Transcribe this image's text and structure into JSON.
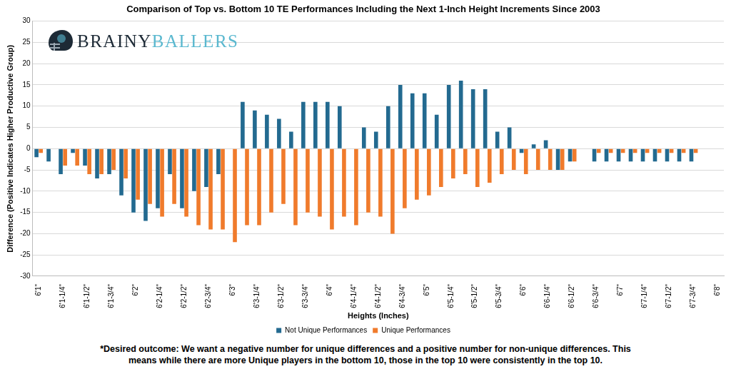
{
  "chart_data": {
    "type": "bar",
    "title": "Comparison of Top vs. Bottom 10 TE Performances Including the Next 1-Inch Height Increments Since 2003",
    "x_label": "Heights (Inches)",
    "y_label": "Difference (Positive Indicates Higher Productive Group)",
    "annotations": [
      "BRAINY",
      "BALLERS",
      "*Desired outcome: We want a negative number for unique differences and a positive number for non-unique differences. This",
      "means while there are more Unique players in the bottom 10, those in the top 10 were consistently in the top 10."
    ],
    "categories": [
      "6'1\"",
      null,
      "6'1-1/4\"",
      null,
      "6'1-1/2\"",
      null,
      "6'1-3/4\"",
      null,
      "6'2\"",
      null,
      "6'2-1/4\"",
      null,
      "6'2-1/2\"",
      null,
      "6'2-3/4\"",
      null,
      "6'3\"",
      null,
      "6'3-1/4\"",
      null,
      "6'3-1/2\"",
      null,
      "6'3-3/4\"",
      null,
      "6'4\"",
      null,
      "6'4-1/4\"",
      null,
      "6'4-1/2\"",
      null,
      "6'4-3/4\"",
      null,
      "6'5\"",
      null,
      "6'5-1/4\"",
      null,
      "6'5-1/2\"",
      null,
      "6'5-3/4\"",
      null,
      "6'6\"",
      null,
      "6'6-1/4\"",
      null,
      "6'6-1/2\"",
      null,
      "6'6-3/4\"",
      null,
      "6'7\"",
      null,
      "6'7-1/4\"",
      null,
      "6'7-1/2\"",
      null,
      "6'7-3/4\"",
      null,
      "6'8\""
    ],
    "series": [
      {
        "name": "Not Unique Performances",
        "color": "#236a90",
        "values": [
          -2,
          -3,
          -6,
          -1,
          -4,
          -7,
          -6,
          -11,
          -15,
          -17,
          -14,
          -6,
          -14,
          -10,
          -9,
          -6,
          0,
          11,
          9,
          8,
          7,
          4,
          11,
          11,
          11,
          10,
          0,
          5,
          4,
          10,
          15,
          13,
          13,
          8,
          15,
          16,
          14,
          14,
          4,
          5,
          -1,
          1,
          2,
          -5,
          -3,
          0,
          -3,
          -3,
          -3,
          -3,
          -3,
          -3,
          -3,
          -3,
          -3,
          0,
          0
        ]
      },
      {
        "name": "Unique Performances",
        "color": "#f07b2c",
        "values": [
          -1,
          0,
          -4,
          -4,
          -6,
          -6,
          -5,
          -7,
          -12,
          -13,
          -16,
          -13,
          -16,
          -18,
          -19,
          -19,
          -22,
          -18,
          -18,
          -15,
          -13,
          -18,
          -15,
          -16,
          -19,
          -16,
          -18,
          -15,
          -16,
          -20,
          -14,
          -12,
          -11,
          -9,
          -7,
          -6,
          -9,
          -8,
          -6,
          -5,
          -6,
          -5,
          -5,
          -5,
          -3,
          0,
          -1,
          -1,
          -1,
          -1,
          -1,
          -1,
          -1,
          -1,
          -1,
          0,
          0
        ]
      }
    ],
    "ylim": [
      -30,
      30
    ],
    "yticks": [
      -30,
      -25,
      -20,
      -15,
      -10,
      -5,
      0,
      5,
      10,
      15,
      20,
      25,
      30
    ],
    "grid": true,
    "legend": "bottom"
  }
}
